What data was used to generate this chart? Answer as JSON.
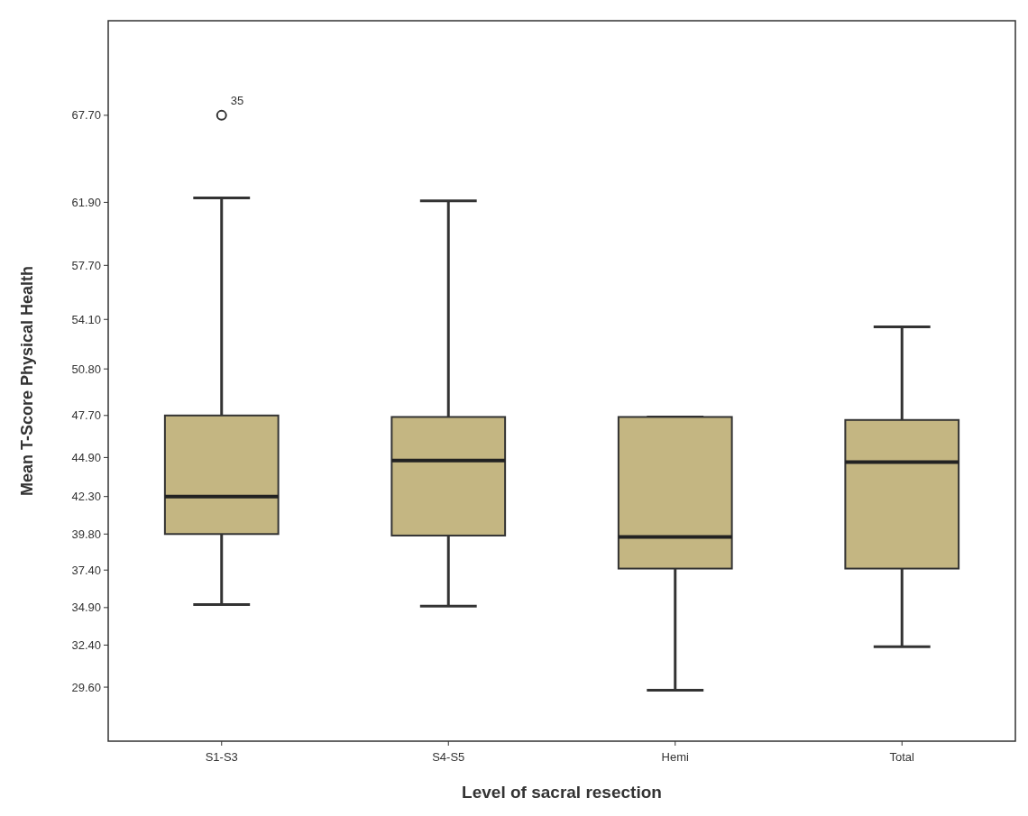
{
  "chart_data": {
    "type": "box",
    "xlabel": "Level of sacral resection",
    "ylabel": "Mean T-Score Physical Health",
    "categories": [
      "S1-S3",
      "S4-S5",
      "Hemi",
      "Total"
    ],
    "color": "#c4b682",
    "boxes": [
      {
        "low": 35.1,
        "q1": 39.8,
        "median": 42.3,
        "q3": 47.7,
        "high": 62.2,
        "outliers": [
          67.7
        ]
      },
      {
        "low": 35.0,
        "q1": 39.7,
        "median": 44.7,
        "q3": 47.6,
        "high": 62.0
      },
      {
        "low": 29.4,
        "q1": 37.5,
        "median": 39.6,
        "q3": 47.6,
        "high": 47.6
      },
      {
        "low": 32.3,
        "q1": 37.5,
        "median": 44.6,
        "q3": 47.4,
        "high": 53.6
      }
    ],
    "ylim": [
      26,
      74
    ],
    "yticks": [
      {
        "value": 29.6,
        "label": "29.60"
      },
      {
        "value": 32.4,
        "label": "32.40"
      },
      {
        "value": 34.9,
        "label": "34.90"
      },
      {
        "value": 37.4,
        "label": "37.40"
      },
      {
        "value": 39.8,
        "label": "39.80"
      },
      {
        "value": 42.3,
        "label": "42.30"
      },
      {
        "value": 44.9,
        "label": "44.90"
      },
      {
        "value": 47.7,
        "label": "47.70"
      },
      {
        "value": 50.8,
        "label": "50.80"
      },
      {
        "value": 54.1,
        "label": "54.10"
      },
      {
        "value": 57.7,
        "label": "57.70"
      },
      {
        "value": 61.9,
        "label": "61.90"
      },
      {
        "value": 67.7,
        "label": "67.70"
      }
    ],
    "annotations": [
      "35"
    ],
    "marker": "circle"
  }
}
